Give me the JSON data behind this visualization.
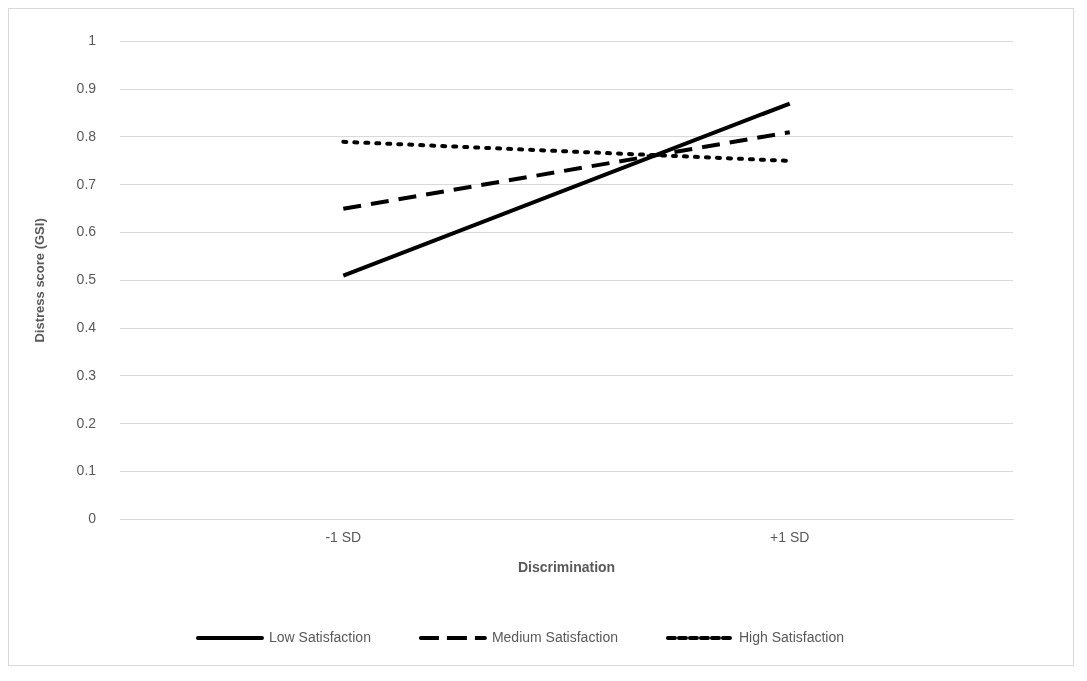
{
  "chart_data": {
    "type": "line",
    "xlabel": "Discrimination",
    "ylabel": "Distress score (GSI)",
    "categories": [
      "-1 SD",
      "+1 SD"
    ],
    "series": [
      {
        "name": "Low Satisfaction",
        "color": "#000000",
        "line_style": "solid",
        "values": [
          0.51,
          0.87
        ]
      },
      {
        "name": "Medium Satisfaction",
        "color": "#000000",
        "line_style": "dashed",
        "values": [
          0.65,
          0.81
        ]
      },
      {
        "name": "High Satisfaction",
        "color": "#000000",
        "line_style": "dotted",
        "values": [
          0.79,
          0.75
        ]
      }
    ],
    "ylim": [
      0,
      1
    ],
    "yticks": [
      0,
      0.1,
      0.2,
      0.3,
      0.4,
      0.5,
      0.6,
      0.7,
      0.8,
      0.9,
      1
    ],
    "grid": "y",
    "legend": "bottom",
    "marker": "none"
  }
}
